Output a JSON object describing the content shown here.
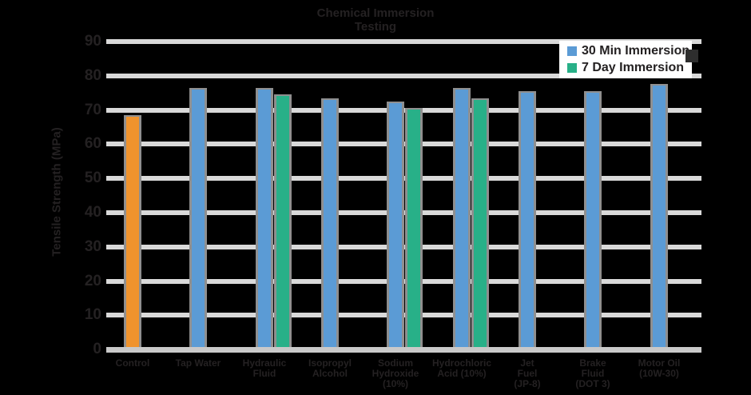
{
  "palette": {
    "background": "#000000",
    "bar_blue": "#5B9BD5",
    "bar_green": "#28B088",
    "bar_orange": "#F0932D",
    "bar_border": "#8F8F8F",
    "gridline": "#D9D9D9",
    "axis_line": "#C9C9C9",
    "dark_text": "#242122",
    "legend_bg": "#FFFFFF"
  },
  "legend": {
    "items": [
      {
        "label": "30 Min Immersion",
        "color": "#5B9BD5"
      },
      {
        "label": "7 Day Immersion",
        "color": "#28B088"
      }
    ]
  },
  "chart_data": {
    "type": "bar",
    "title": "Chemical Immersion Testing",
    "ylabel": "Tensile Strength (MPa)",
    "xlabel": "",
    "ylim": [
      0,
      90
    ],
    "y_ticks": [
      0,
      10,
      20,
      30,
      40,
      50,
      60,
      70,
      80,
      90
    ],
    "grid": true,
    "legend_position": "upper right",
    "categories": [
      "Control",
      "Tap Water",
      "Hydraulic Fluid",
      "Isopropyl Alcohol",
      "Sodium Hydroxide (10%)",
      "Hydrochloric Acid (10%)",
      "Jet Fuel (JP-8)",
      "Brake Fluid (DOT 3)",
      "Motor Oil (10W-30)"
    ],
    "x_tick_lines": [
      [
        "Control"
      ],
      [
        "Tap Water"
      ],
      [
        "Hydraulic",
        "Fluid"
      ],
      [
        "Isopropyl",
        "Alcohol"
      ],
      [
        "Sodium",
        "Hydroxide",
        "(10%)"
      ],
      [
        "Hydrochloric",
        "Acid (10%)"
      ],
      [
        "Jet",
        "Fuel",
        "(JP-8)"
      ],
      [
        "Brake",
        "Fluid",
        "(DOT 3)"
      ],
      [
        "Motor Oil",
        "(10W-30)"
      ]
    ],
    "series": [
      {
        "name": "Control",
        "color": "#F0932D",
        "values": [
          68,
          null,
          null,
          null,
          null,
          null,
          null,
          null,
          null
        ]
      },
      {
        "name": "30 Min Immersion",
        "color": "#5B9BD5",
        "values": [
          null,
          76,
          76,
          73,
          72,
          76,
          75,
          75,
          77
        ]
      },
      {
        "name": "7 Day Immersion",
        "color": "#28B088",
        "values": [
          null,
          null,
          74,
          null,
          70,
          73,
          null,
          null,
          null
        ]
      }
    ]
  }
}
